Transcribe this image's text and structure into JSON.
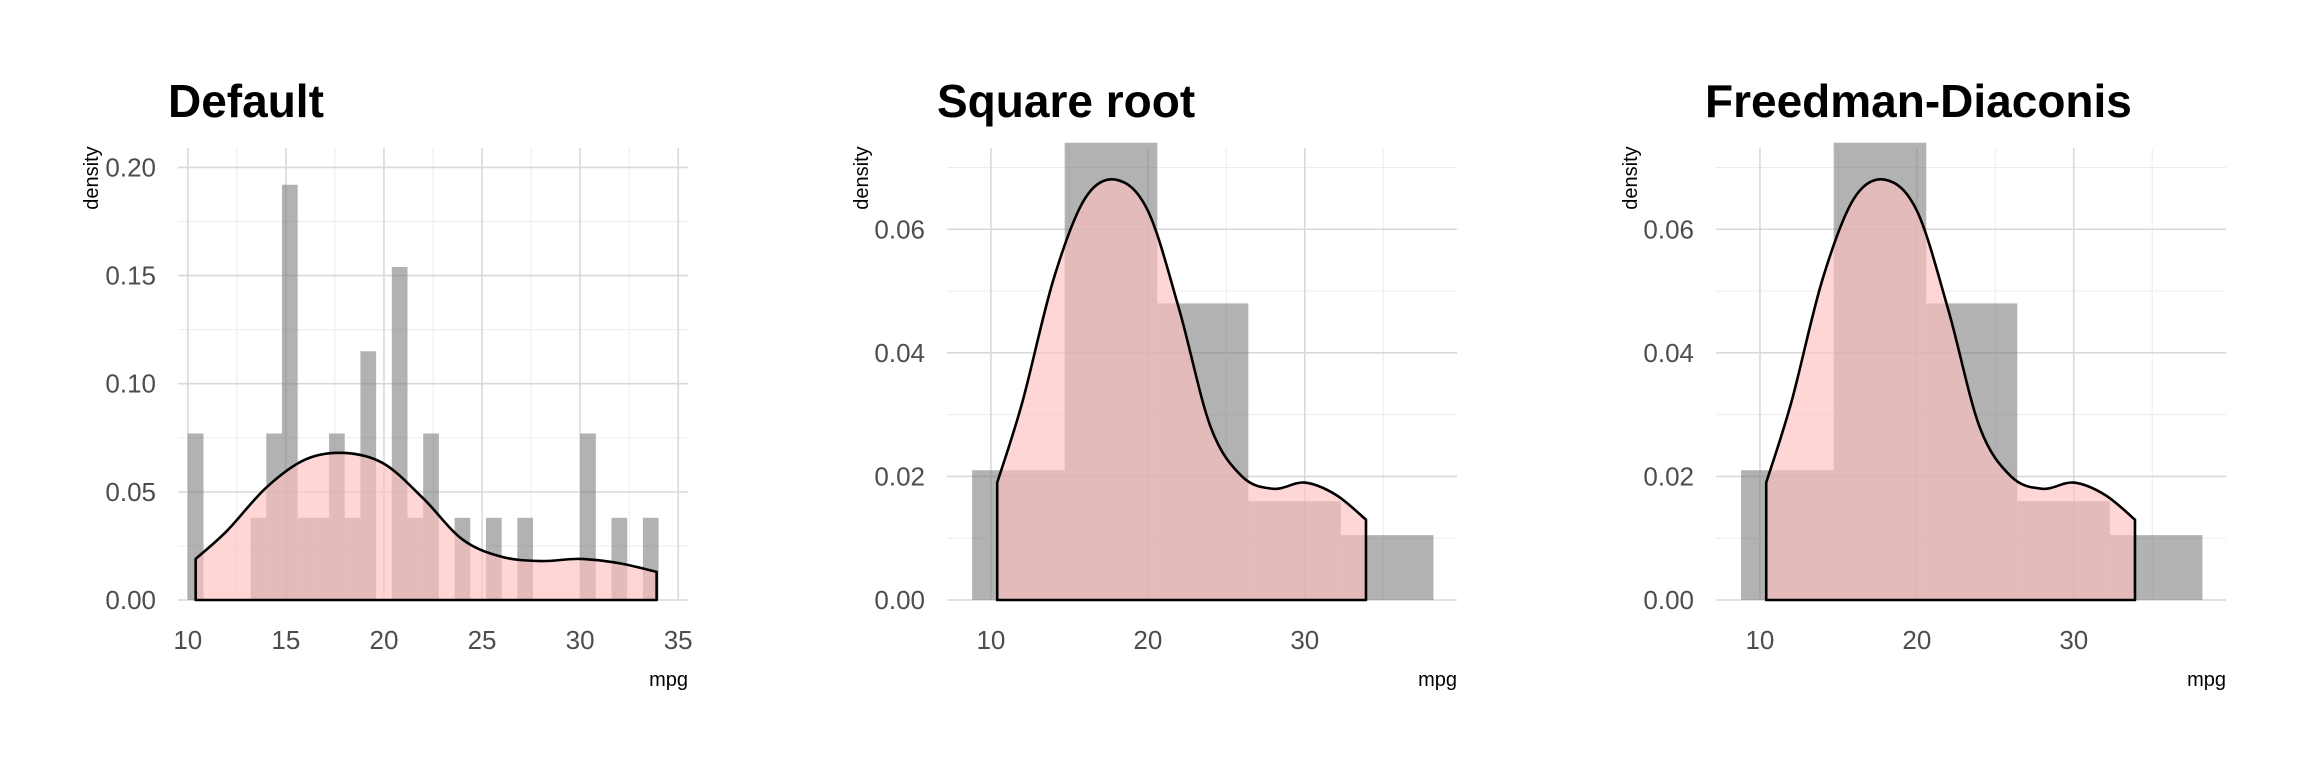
{
  "chart_data": [
    {
      "type": "bar",
      "title": "Default",
      "xlabel": "mpg",
      "ylabel": "density",
      "xlim": [
        9.5,
        35.5
      ],
      "ylim": [
        0,
        0.2
      ],
      "xticks": [
        10,
        15,
        20,
        25,
        30,
        35
      ],
      "yticks": [
        0,
        0.05,
        0.1,
        0.15,
        0.2
      ],
      "ytick_labels": [
        "0.00",
        "0.05",
        "0.10",
        "0.15",
        "0.20"
      ],
      "bin_width": 0.8,
      "bins": [
        {
          "x": 10.4,
          "value": 0.077
        },
        {
          "x": 11.2,
          "value": 0
        },
        {
          "x": 12.0,
          "value": 0
        },
        {
          "x": 12.8,
          "value": 0
        },
        {
          "x": 13.6,
          "value": 0.038
        },
        {
          "x": 14.4,
          "value": 0.077
        },
        {
          "x": 15.2,
          "value": 0.192
        },
        {
          "x": 16.0,
          "value": 0.038
        },
        {
          "x": 16.8,
          "value": 0.038
        },
        {
          "x": 17.6,
          "value": 0.077
        },
        {
          "x": 18.4,
          "value": 0.038
        },
        {
          "x": 19.2,
          "value": 0.115
        },
        {
          "x": 20.0,
          "value": 0
        },
        {
          "x": 20.8,
          "value": 0.154
        },
        {
          "x": 21.6,
          "value": 0.038
        },
        {
          "x": 22.4,
          "value": 0.077
        },
        {
          "x": 23.2,
          "value": 0
        },
        {
          "x": 24.0,
          "value": 0.038
        },
        {
          "x": 24.8,
          "value": 0
        },
        {
          "x": 25.6,
          "value": 0.038
        },
        {
          "x": 26.4,
          "value": 0
        },
        {
          "x": 27.2,
          "value": 0.038
        },
        {
          "x": 28.0,
          "value": 0
        },
        {
          "x": 28.8,
          "value": 0
        },
        {
          "x": 29.6,
          "value": 0
        },
        {
          "x": 30.4,
          "value": 0.077
        },
        {
          "x": 31.2,
          "value": 0
        },
        {
          "x": 32.0,
          "value": 0.038
        },
        {
          "x": 32.8,
          "value": 0
        },
        {
          "x": 33.6,
          "value": 0.038
        }
      ],
      "density": {
        "x": [
          10.4,
          12,
          14,
          16,
          18,
          20,
          22,
          24,
          26,
          28,
          30,
          32,
          33.9
        ],
        "y": [
          0.019,
          0.032,
          0.052,
          0.065,
          0.068,
          0.063,
          0.047,
          0.028,
          0.02,
          0.018,
          0.019,
          0.017,
          0.013
        ]
      }
    },
    {
      "type": "bar",
      "title": "Square root",
      "xlabel": "mpg",
      "ylabel": "density",
      "xlim": [
        7.2,
        39.7
      ],
      "ylim": [
        0,
        0.07
      ],
      "xticks": [
        10,
        20,
        30
      ],
      "yticks": [
        0,
        0.02,
        0.04,
        0.06
      ],
      "ytick_labels": [
        "0.00",
        "0.02",
        "0.04",
        "0.06"
      ],
      "bins": [
        {
          "x0": 8.8,
          "x1": 14.7,
          "value": 0.021
        },
        {
          "x0": 14.7,
          "x1": 20.6,
          "value": 0.074
        },
        {
          "x0": 20.6,
          "x1": 26.4,
          "value": 0.048
        },
        {
          "x0": 26.4,
          "x1": 32.3,
          "value": 0.016
        },
        {
          "x0": 32.3,
          "x1": 38.2,
          "value": 0.0105
        }
      ],
      "density": {
        "x": [
          10.4,
          12,
          14,
          16,
          18,
          20,
          22,
          24,
          26,
          28,
          30,
          32,
          33.9
        ],
        "y": [
          0.019,
          0.032,
          0.052,
          0.065,
          0.068,
          0.063,
          0.047,
          0.028,
          0.02,
          0.018,
          0.019,
          0.017,
          0.013
        ]
      }
    },
    {
      "type": "bar",
      "title": "Freedman-Diaconis",
      "xlabel": "mpg",
      "ylabel": "density",
      "xlim": [
        7.2,
        39.7
      ],
      "ylim": [
        0,
        0.07
      ],
      "xticks": [
        10,
        20,
        30
      ],
      "yticks": [
        0,
        0.02,
        0.04,
        0.06
      ],
      "ytick_labels": [
        "0.00",
        "0.02",
        "0.04",
        "0.06"
      ],
      "bins": [
        {
          "x0": 8.8,
          "x1": 14.7,
          "value": 0.021
        },
        {
          "x0": 14.7,
          "x1": 20.6,
          "value": 0.074
        },
        {
          "x0": 20.6,
          "x1": 26.4,
          "value": 0.048
        },
        {
          "x0": 26.4,
          "x1": 32.3,
          "value": 0.016
        },
        {
          "x0": 32.3,
          "x1": 38.2,
          "value": 0.0105
        }
      ],
      "density": {
        "x": [
          10.4,
          12,
          14,
          16,
          18,
          20,
          22,
          24,
          26,
          28,
          30,
          32,
          33.9
        ],
        "y": [
          0.019,
          0.032,
          0.052,
          0.065,
          0.068,
          0.063,
          0.047,
          0.028,
          0.02,
          0.018,
          0.019,
          0.017,
          0.013
        ]
      }
    }
  ],
  "colors": {
    "bar_fill": "#7f7f7f",
    "density_fill": "#ffc0c0",
    "density_line": "#000000",
    "grid_major": "#d9d9d9",
    "grid_minor": "#ececec"
  }
}
